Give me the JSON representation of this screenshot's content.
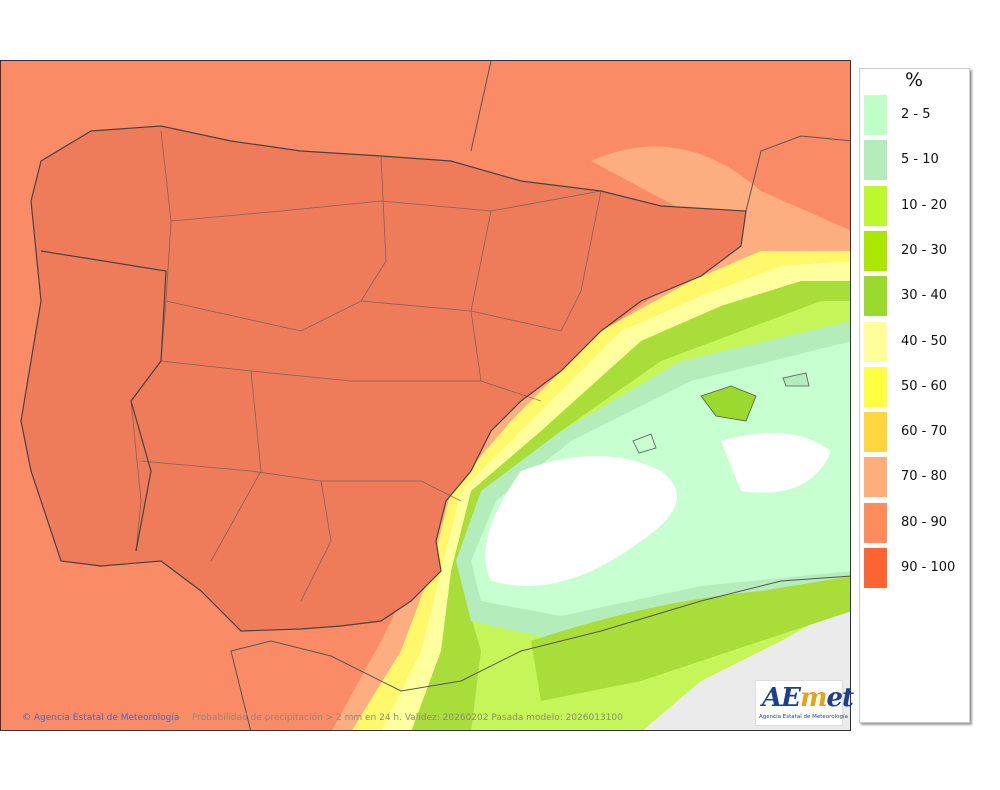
{
  "map": {
    "credit": "© Agencia Estatal de Meteorología",
    "caption": "Probabilidad de precipitación > 2 mm en 24 h. Validez: 20260202 Pasada modelo: 2026013100",
    "logo_text": "AEMET",
    "logo_subtitle": "Agencia Estatal de Meteorología"
  },
  "legend": {
    "title": "%",
    "items": [
      {
        "label": "2 - 5",
        "color": "#c0ffc8"
      },
      {
        "label": "5 - 10",
        "color": "#b4ecbb"
      },
      {
        "label": "10 - 20",
        "color": "#bcf82e"
      },
      {
        "label": "20 - 30",
        "color": "#aae600"
      },
      {
        "label": "30 - 40",
        "color": "#9ada2e"
      },
      {
        "label": "40 - 50",
        "color": "#ffff9a"
      },
      {
        "label": "50 - 60",
        "color": "#ffff40"
      },
      {
        "label": "60 - 70",
        "color": "#ffd540"
      },
      {
        "label": "70 - 80",
        "color": "#ffad7a"
      },
      {
        "label": "80 - 90",
        "color": "#ff8c5a"
      },
      {
        "label": "90 - 100",
        "color": "#ff6432"
      }
    ]
  }
}
